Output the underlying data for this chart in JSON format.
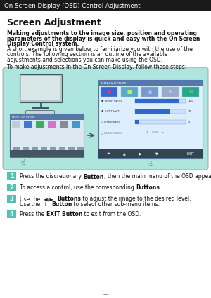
{
  "title": "On Screen Display (OSD) Control Adjustment",
  "title_bg": "#1a1a1a",
  "title_color": "#ffffff",
  "section_heading": "Screen Adjustment",
  "body_bold": "Making adjustments to the image size, position and operating\nparameters of the display is quick and easy with the On Screen\nDisplay Control system.",
  "body_normal": "A short example is given below to familiarize you with the use of the\ncontrols. The following section is an outline of the available\nadjustments and selections you can make using the OSD.",
  "steps_intro": "To make adjustments in the On Screen Display, follow these steps:",
  "diagram_bg": "#aee5de",
  "diagram_border": "#aaaaaa",
  "step_bg": "#55bfb0",
  "step_color": "#ffffff",
  "page_bg": "#ffffff",
  "steps": [
    {
      "num": "1",
      "normal1": "Press the discretionary ",
      "bold1": "Button",
      "normal2": ", then the main menu of the OSD appears.",
      "bold2": "",
      "normal3": "",
      "line2": false
    },
    {
      "num": "2",
      "normal1": "To access a control, use the corresponding ",
      "bold1": "Buttons",
      "normal2": ".",
      "bold2": "",
      "normal3": "",
      "line2": false
    },
    {
      "num": "3",
      "normal1": "Use the  ◄/►  ",
      "bold1": "Buttons",
      "normal2": " to adjust the image to the desired level.",
      "bold2": "Button",
      "normal3": " to select other sub-menu items.",
      "line2": true,
      "line2_normal1": "Use the  ⇕  "
    },
    {
      "num": "4",
      "normal1": "Press the ",
      "bold1": "EXIT Button",
      "normal2": " to exit from the OSD.",
      "bold2": "",
      "normal3": "",
      "line2": false
    }
  ]
}
